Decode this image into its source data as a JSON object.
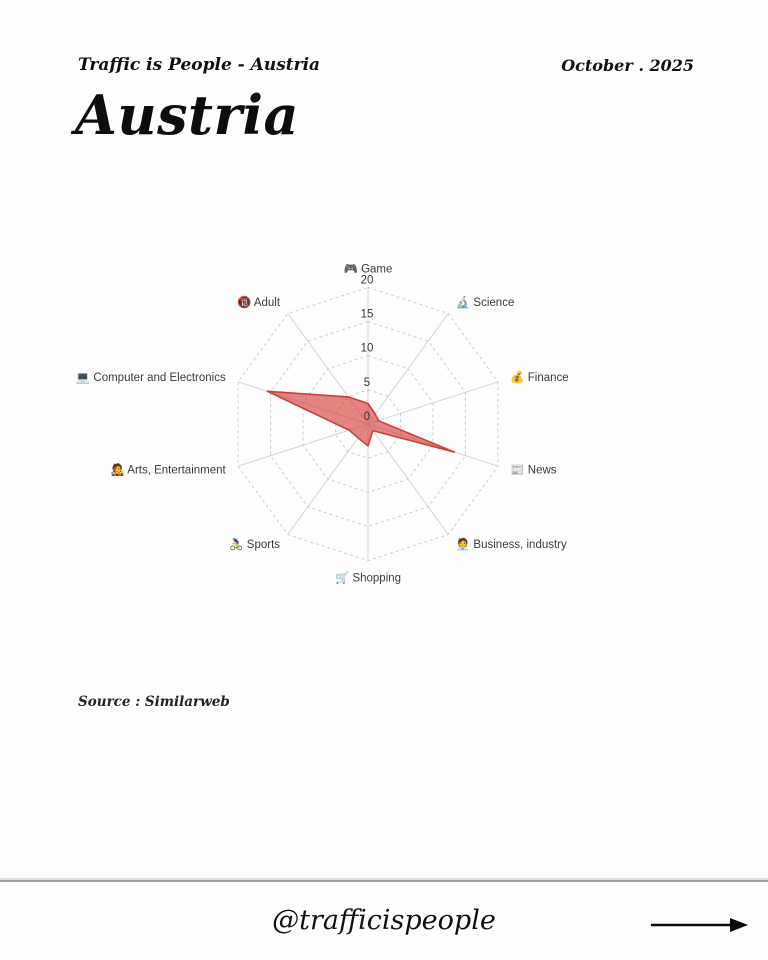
{
  "header": {
    "brand": "Traffic is People - Austria",
    "date": "October . 2025",
    "title": "Austria"
  },
  "source_text": "Source : Similarweb",
  "footer": {
    "handle": "@trafficispeople",
    "arrow_icon": "right-arrow"
  },
  "chart_data": {
    "type": "radar",
    "categories": [
      {
        "icon": "🎮",
        "label": "Game"
      },
      {
        "icon": "🔬",
        "label": "Science"
      },
      {
        "icon": "💰",
        "label": "Finance"
      },
      {
        "icon": "📰",
        "label": "News"
      },
      {
        "icon": "🧑‍💼",
        "label": "Business, industry"
      },
      {
        "icon": "🛒",
        "label": "Shopping"
      },
      {
        "icon": "🚴‍♀️",
        "label": "Sports"
      },
      {
        "icon": "🧑‍🎤",
        "label": "Arts, Entertainment"
      },
      {
        "icon": "💻",
        "label": "Computer and Electronics"
      },
      {
        "icon": "🔞",
        "label": "Adult"
      }
    ],
    "values": [
      3.0,
      1.8,
      1.6,
      13.3,
      1.2,
      3.2,
      2.5,
      2.9,
      15.5,
      4.9
    ],
    "ticks": [
      0,
      5,
      10,
      15,
      20
    ],
    "ylim": [
      0,
      20
    ],
    "grid": {
      "rings": "dashed",
      "spokes": "solid",
      "color": "#cccccc"
    },
    "series_fill": "rgba(214,69,65,0.66)",
    "series_stroke": "#c9413a",
    "tick_label_color": "#333333",
    "category_label_color": "#3a3a3a"
  }
}
